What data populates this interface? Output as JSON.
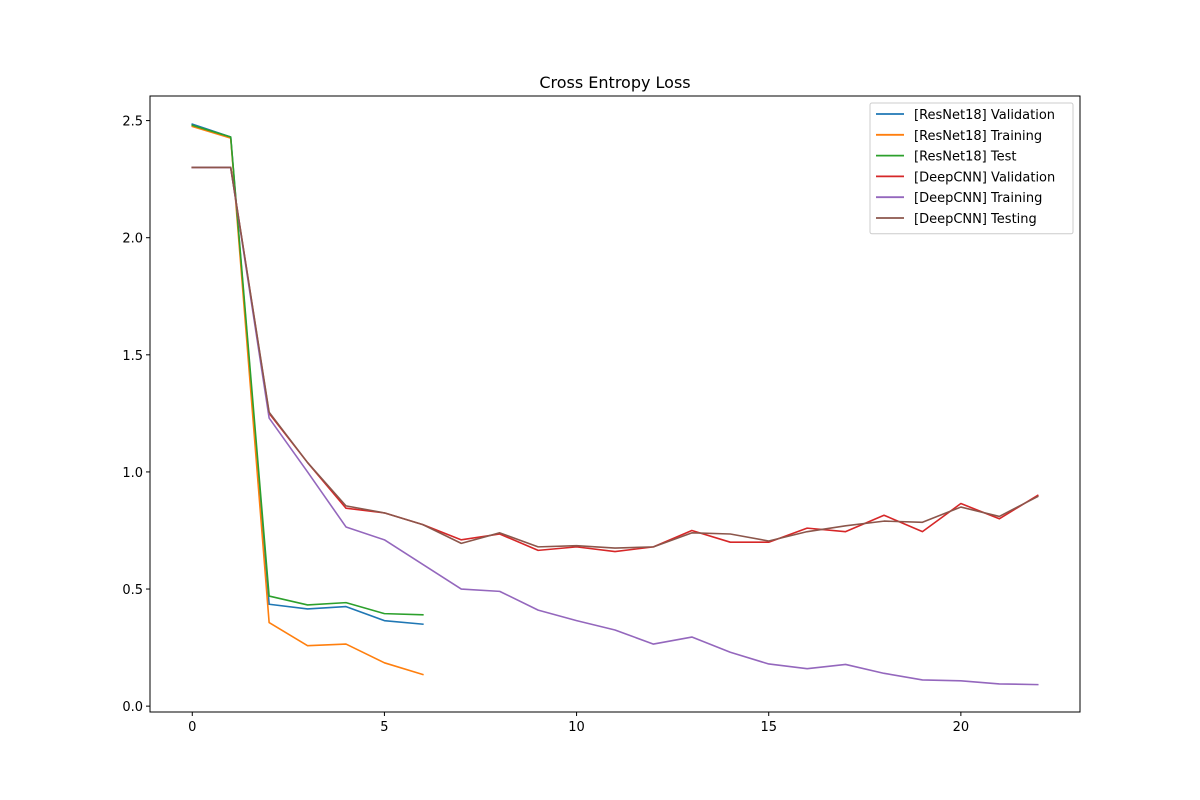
{
  "chart_data": {
    "type": "line",
    "title": "Cross Entropy Loss",
    "xlabel": "",
    "ylabel": "",
    "xlim": [
      -1.1,
      23.1
    ],
    "ylim": [
      -0.025,
      2.605
    ],
    "xticks": [
      0,
      5,
      10,
      15,
      20
    ],
    "xtick_labels": [
      "0",
      "5",
      "10",
      "15",
      "20"
    ],
    "yticks": [
      0.0,
      0.5,
      1.0,
      1.5,
      2.0,
      2.5
    ],
    "ytick_labels": [
      "0.0",
      "0.5",
      "1.0",
      "1.5",
      "2.0",
      "2.5"
    ],
    "legend_position": "top-right",
    "grid": false,
    "series": [
      {
        "name": "[ResNet18] Validation",
        "color": "#1f77b4",
        "x": [
          0,
          1,
          2,
          3,
          4,
          5,
          6
        ],
        "values": [
          2.485,
          2.43,
          0.435,
          0.415,
          0.425,
          0.365,
          0.35
        ]
      },
      {
        "name": "[ResNet18] Training",
        "color": "#ff7f0e",
        "x": [
          0,
          1,
          2,
          3,
          4,
          5,
          6
        ],
        "values": [
          2.475,
          2.425,
          0.357,
          0.258,
          0.265,
          0.185,
          0.135
        ]
      },
      {
        "name": "[ResNet18] Test",
        "color": "#2ca02c",
        "x": [
          0,
          1,
          2,
          3,
          4,
          5,
          6
        ],
        "values": [
          2.48,
          2.43,
          0.47,
          0.432,
          0.442,
          0.395,
          0.39
        ]
      },
      {
        "name": "[DeepCNN] Validation",
        "color": "#d62728",
        "x": [
          0,
          1,
          2,
          3,
          4,
          5,
          6,
          7,
          8,
          9,
          10,
          11,
          12,
          13,
          14,
          15,
          16,
          17,
          18,
          19,
          20,
          21,
          22
        ],
        "values": [
          2.3,
          2.3,
          1.25,
          1.04,
          0.845,
          0.825,
          0.775,
          0.71,
          0.735,
          0.665,
          0.68,
          0.66,
          0.68,
          0.75,
          0.7,
          0.7,
          0.76,
          0.745,
          0.815,
          0.745,
          0.865,
          0.8,
          0.9
        ]
      },
      {
        "name": "[DeepCNN] Training",
        "color": "#9467bd",
        "x": [
          0,
          1,
          2,
          3,
          4,
          5,
          6,
          7,
          8,
          9,
          10,
          11,
          12,
          13,
          14,
          15,
          16,
          17,
          18,
          19,
          20,
          21,
          22
        ],
        "values": [
          2.3,
          2.3,
          1.23,
          1.0,
          0.765,
          0.71,
          0.605,
          0.5,
          0.49,
          0.41,
          0.365,
          0.325,
          0.265,
          0.295,
          0.23,
          0.18,
          0.16,
          0.178,
          0.14,
          0.112,
          0.108,
          0.095,
          0.092
        ]
      },
      {
        "name": "[DeepCNN] Testing",
        "color": "#8c564b",
        "x": [
          0,
          1,
          2,
          3,
          4,
          5,
          6,
          7,
          8,
          9,
          10,
          11,
          12,
          13,
          14,
          15,
          16,
          17,
          18,
          19,
          20,
          21,
          22
        ],
        "values": [
          2.3,
          2.3,
          1.255,
          1.04,
          0.855,
          0.825,
          0.775,
          0.695,
          0.74,
          0.68,
          0.685,
          0.675,
          0.68,
          0.74,
          0.735,
          0.705,
          0.745,
          0.77,
          0.79,
          0.785,
          0.85,
          0.81,
          0.895
        ]
      }
    ]
  }
}
